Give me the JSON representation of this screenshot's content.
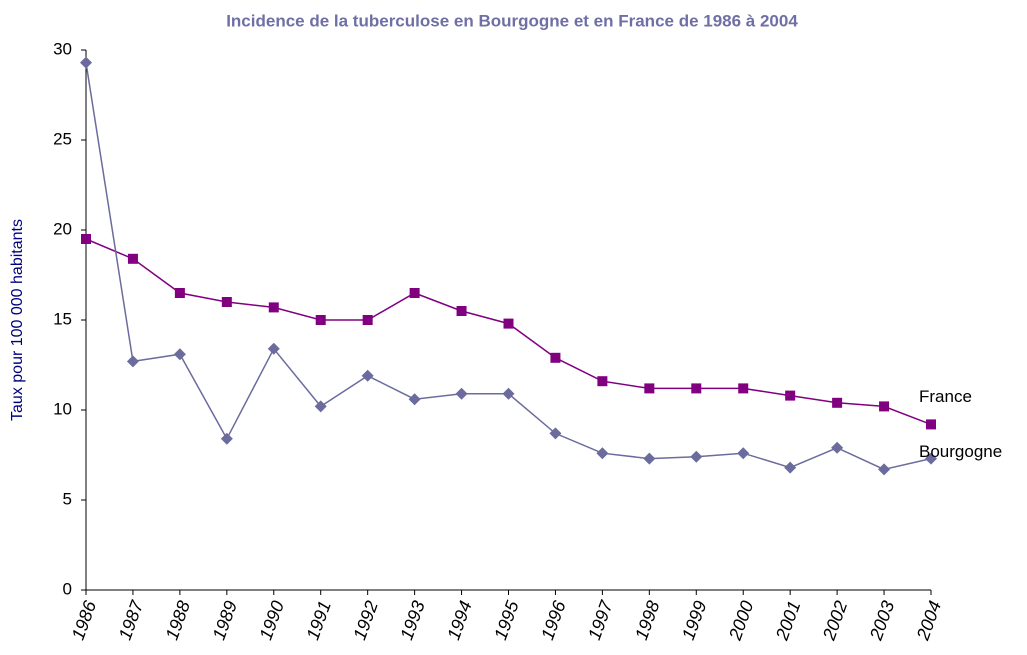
{
  "chart_data": {
    "type": "line",
    "title": "Incidence de la tuberculose en Bourgogne et en France de 1986 à 2004",
    "y_label": "Taux  pour 100 000 habitants",
    "categories": [
      "1986",
      "1987",
      "1988",
      "1989",
      "1990",
      "1991",
      "1992",
      "1993",
      "1994",
      "1995",
      "1996",
      "1997",
      "1998",
      "1999",
      "2000",
      "2001",
      "2002",
      "2003",
      "2004"
    ],
    "series": [
      {
        "name": "France",
        "color": "#800080",
        "marker": "square",
        "values": [
          19.5,
          18.4,
          16.5,
          16.0,
          15.7,
          15.0,
          15.0,
          16.5,
          15.5,
          14.8,
          12.9,
          11.6,
          11.2,
          11.2,
          11.2,
          10.8,
          10.4,
          10.2,
          9.2
        ]
      },
      {
        "name": "Bourgogne",
        "color": "#6b6b9e",
        "marker": "diamond",
        "values": [
          29.3,
          12.7,
          13.1,
          8.4,
          13.4,
          10.2,
          11.9,
          10.6,
          10.9,
          10.9,
          8.7,
          7.6,
          7.3,
          7.4,
          7.6,
          6.8,
          7.9,
          6.7,
          7.3
        ]
      }
    ],
    "ylim": [
      0,
      30
    ],
    "yticks": [
      0,
      5,
      10,
      15,
      20,
      25,
      30
    ],
    "grid": false
  }
}
